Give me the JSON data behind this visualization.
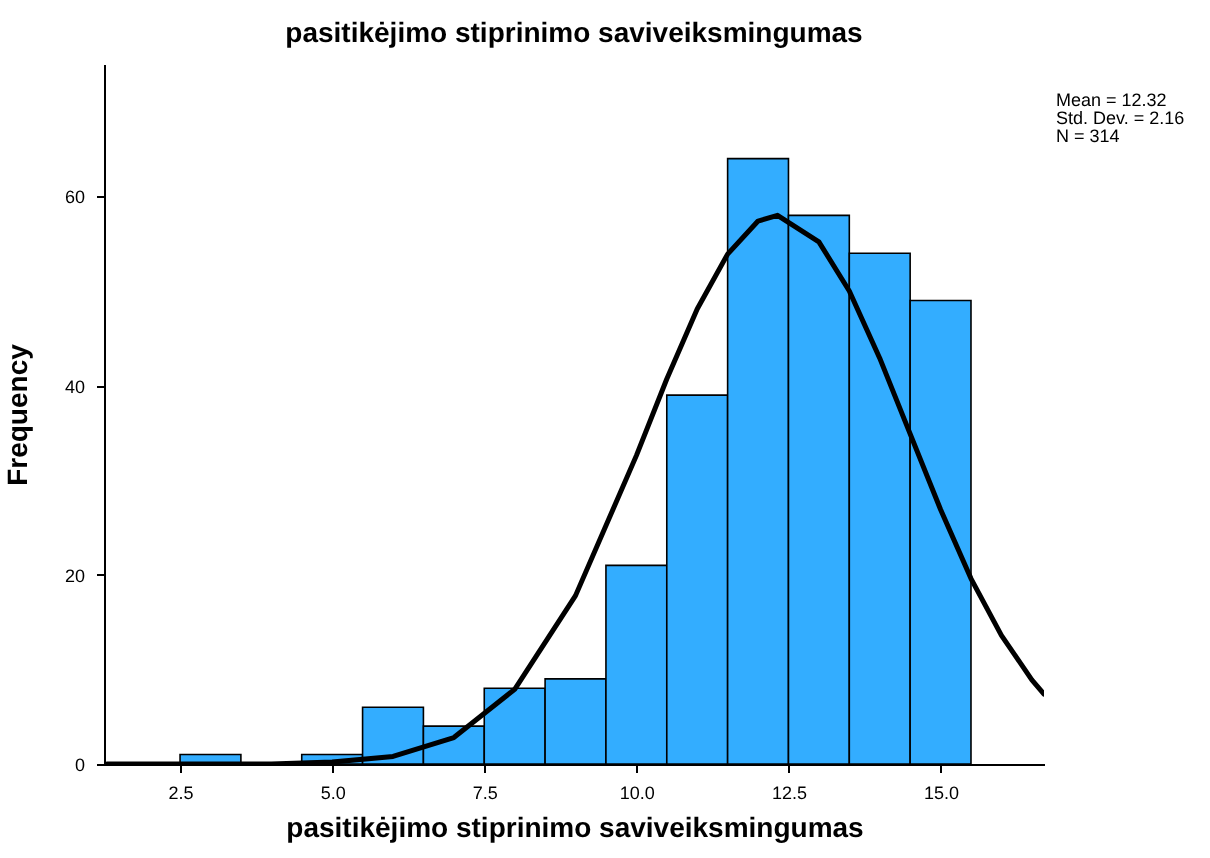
{
  "chart_data": {
    "type": "histogram",
    "title": "pasitikėjimo stiprinimo saviveiksmingumas",
    "xlabel": "pasitikėjimo stiprinimo saviveiksmingumas",
    "ylabel": "Frequency",
    "bins": [
      2.5,
      3.5,
      4.5,
      5.5,
      6.5,
      7.5,
      8.5,
      9.5,
      10.5,
      11.5,
      12.5,
      13.5,
      14.5,
      15.5
    ],
    "values": [
      1,
      0,
      1,
      6,
      4,
      8,
      9,
      21,
      39,
      64,
      58,
      54,
      49
    ],
    "color": "#33adff",
    "series": [
      {
        "type": "line",
        "color": "#000000",
        "x": [
          1.3,
          3,
          4,
          5,
          6,
          7,
          8,
          9,
          10,
          10.5,
          11,
          11.5,
          12,
          12.32,
          13,
          13.5,
          14,
          14.5,
          15,
          15.5,
          16,
          16.5,
          16.7
        ],
        "values": [
          0.0,
          0.0,
          0.0,
          0.2,
          0.8,
          2.8,
          7.9,
          17.8,
          32.6,
          40.7,
          48.1,
          53.9,
          57.4,
          58.0,
          55.2,
          50.0,
          42.9,
          34.9,
          26.9,
          19.6,
          13.6,
          8.9,
          7.4
        ]
      }
    ],
    "xlim": [
      1.25,
      16.7
    ],
    "xticks": [
      2.5,
      {
        "value": 5,
        "label": "5.0"
      },
      7.5,
      {
        "value": 10,
        "label": "10.0"
      },
      12.5,
      {
        "value": 15,
        "label": "15.0"
      }
    ],
    "ylim": [
      0,
      74
    ],
    "yticks": [
      0,
      20,
      40,
      60
    ],
    "grid": false,
    "marker": "none",
    "line_style": "solid",
    "annotations": [
      "Mean = 12.32",
      "Std. Dev. = 2.16",
      "N = 314"
    ]
  }
}
